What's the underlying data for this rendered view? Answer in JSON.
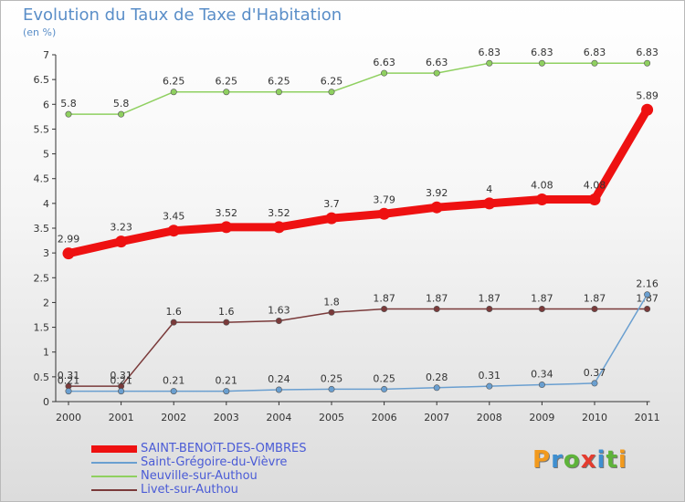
{
  "title": "Evolution du Taux de Taxe d'Habitation",
  "subtitle": "(en %)",
  "logo": {
    "text": "Proxiti",
    "letter_colors": [
      "#f29a1d",
      "#3f8fd0",
      "#5eb33a",
      "#e43c2f",
      "#3f8fd0",
      "#5eb33a",
      "#f29a1d"
    ]
  },
  "chart_data": {
    "type": "line",
    "title": "Evolution du Taux de Taxe d'Habitation",
    "subtitle": "(en %)",
    "xlabel": "",
    "ylabel": "",
    "x": [
      "2000",
      "2001",
      "2002",
      "2003",
      "2004",
      "2005",
      "2006",
      "2007",
      "2008",
      "2009",
      "2010",
      "2011"
    ],
    "ylim": [
      0,
      7
    ],
    "yticks": [
      "0",
      "0.5",
      "1",
      "1.5",
      "2",
      "2.5",
      "3",
      "3.5",
      "4",
      "4.5",
      "5",
      "5.5",
      "6",
      "6.5",
      "7"
    ],
    "grid": false,
    "legend_position": "bottom-left",
    "series": [
      {
        "name": "SAINT-BENOîT-DES-OMBRES",
        "color": "#ee1111",
        "values": [
          2.99,
          3.23,
          3.45,
          3.52,
          3.52,
          3.7,
          3.79,
          3.92,
          4,
          4.08,
          4.08,
          5.89
        ],
        "labels": [
          "2.99",
          "3.23",
          "3.45",
          "3.52",
          "3.52",
          "3.7",
          "3.79",
          "3.92",
          "4",
          "4.08",
          "4.08",
          "5.89"
        ],
        "emphasis": true
      },
      {
        "name": "Saint-Grégoire-du-Vièvre",
        "color": "#6a9fd0",
        "values": [
          0.21,
          0.21,
          0.21,
          0.21,
          0.24,
          0.25,
          0.25,
          0.28,
          0.31,
          0.34,
          0.37,
          2.16
        ],
        "labels": [
          "0.21",
          "0.21",
          "0.21",
          "0.21",
          "0.24",
          "0.25",
          "0.25",
          "0.28",
          "0.31",
          "0.34",
          "0.37",
          "2.16"
        ]
      },
      {
        "name": "Neuville-sur-Authou",
        "color": "#8fd060",
        "values": [
          5.8,
          5.8,
          6.25,
          6.25,
          6.25,
          6.25,
          6.63,
          6.63,
          6.83,
          6.83,
          6.83,
          6.83
        ],
        "labels": [
          "5.8",
          "5.8",
          "6.25",
          "6.25",
          "6.25",
          "6.25",
          "6.63",
          "6.63",
          "6.83",
          "6.83",
          "6.83",
          "6.83"
        ]
      },
      {
        "name": "Livet-sur-Authou",
        "color": "#7a3a3a",
        "values": [
          0.31,
          0.31,
          1.6,
          1.6,
          1.63,
          1.8,
          1.87,
          1.87,
          1.87,
          1.87,
          1.87,
          1.87
        ],
        "labels": [
          "0.31",
          "0.31",
          "1.6",
          "1.6",
          "1.63",
          "1.8",
          "1.87",
          "1.87",
          "1.87",
          "1.87",
          "1.87",
          "1.87"
        ]
      }
    ]
  }
}
